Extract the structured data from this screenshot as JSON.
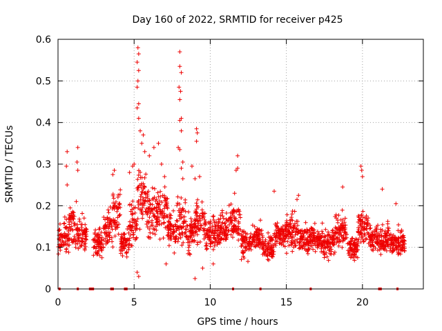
{
  "chart_data": {
    "type": "scatter",
    "title": "Day 160 of 2022, SRMTID for receiver p425",
    "xlabel": "GPS time / hours",
    "ylabel": "SRMTID / TECUs",
    "xlim": [
      0,
      24
    ],
    "ylim": [
      0,
      0.6
    ],
    "x_ticks": [
      0,
      5,
      10,
      15,
      20
    ],
    "y_ticks": [
      0,
      0.1,
      0.2,
      0.3,
      0.4,
      0.5,
      0.6
    ],
    "x_tick_labels": [
      "0",
      "5",
      "10",
      "15",
      "20"
    ],
    "y_tick_labels": [
      "0",
      "0.1",
      "0.2",
      "0.3",
      "0.4",
      "0.5",
      "0.6"
    ],
    "grid": true,
    "marker": "+",
    "series_color": "#ee0000",
    "series": [
      {
        "name": "SRMTID",
        "segments": [
          {
            "start": 0.0,
            "end": 0.3,
            "base": 0.12,
            "spread": 0.04
          },
          {
            "start": 0.3,
            "end": 0.7,
            "base": 0.13,
            "spread": 0.05
          },
          {
            "start": 0.7,
            "end": 1.2,
            "base": 0.15,
            "spread": 0.06
          },
          {
            "start": 1.2,
            "end": 1.9,
            "base": 0.13,
            "spread": 0.05
          },
          {
            "start": 2.3,
            "end": 3.0,
            "base": 0.11,
            "spread": 0.04
          },
          {
            "start": 3.0,
            "end": 3.6,
            "base": 0.15,
            "spread": 0.05
          },
          {
            "start": 3.6,
            "end": 4.1,
            "base": 0.18,
            "spread": 0.06
          },
          {
            "start": 4.1,
            "end": 4.7,
            "base": 0.11,
            "spread": 0.04
          },
          {
            "start": 4.7,
            "end": 5.2,
            "base": 0.16,
            "spread": 0.07
          },
          {
            "start": 5.2,
            "end": 5.8,
            "base": 0.22,
            "spread": 0.09
          },
          {
            "start": 5.8,
            "end": 6.5,
            "base": 0.18,
            "spread": 0.08
          },
          {
            "start": 6.5,
            "end": 7.2,
            "base": 0.19,
            "spread": 0.07
          },
          {
            "start": 7.2,
            "end": 7.8,
            "base": 0.14,
            "spread": 0.05
          },
          {
            "start": 7.8,
            "end": 8.4,
            "base": 0.17,
            "spread": 0.07
          },
          {
            "start": 8.4,
            "end": 9.0,
            "base": 0.13,
            "spread": 0.05
          },
          {
            "start": 9.0,
            "end": 9.7,
            "base": 0.16,
            "spread": 0.06
          },
          {
            "start": 9.7,
            "end": 10.5,
            "base": 0.13,
            "spread": 0.05
          },
          {
            "start": 10.5,
            "end": 11.3,
            "base": 0.15,
            "spread": 0.05
          },
          {
            "start": 11.3,
            "end": 12.0,
            "base": 0.16,
            "spread": 0.05
          },
          {
            "start": 12.0,
            "end": 12.7,
            "base": 0.11,
            "spread": 0.04
          },
          {
            "start": 12.7,
            "end": 13.4,
            "base": 0.12,
            "spread": 0.04
          },
          {
            "start": 13.4,
            "end": 14.2,
            "base": 0.1,
            "spread": 0.035
          },
          {
            "start": 14.2,
            "end": 15.0,
            "base": 0.13,
            "spread": 0.04
          },
          {
            "start": 15.0,
            "end": 15.8,
            "base": 0.14,
            "spread": 0.05
          },
          {
            "start": 15.8,
            "end": 16.6,
            "base": 0.12,
            "spread": 0.04
          },
          {
            "start": 16.6,
            "end": 17.4,
            "base": 0.12,
            "spread": 0.04
          },
          {
            "start": 17.4,
            "end": 18.2,
            "base": 0.11,
            "spread": 0.04
          },
          {
            "start": 18.2,
            "end": 19.0,
            "base": 0.14,
            "spread": 0.05
          },
          {
            "start": 19.0,
            "end": 19.7,
            "base": 0.1,
            "spread": 0.035
          },
          {
            "start": 19.7,
            "end": 20.4,
            "base": 0.15,
            "spread": 0.05
          },
          {
            "start": 20.4,
            "end": 21.0,
            "base": 0.12,
            "spread": 0.04
          },
          {
            "start": 21.0,
            "end": 21.8,
            "base": 0.12,
            "spread": 0.04
          },
          {
            "start": 21.8,
            "end": 22.8,
            "base": 0.11,
            "spread": 0.04
          }
        ],
        "spikes": [
          [
            0.6,
            0.33
          ],
          [
            0.55,
            0.295
          ],
          [
            0.6,
            0.25
          ],
          [
            1.3,
            0.34
          ],
          [
            1.25,
            0.305
          ],
          [
            1.3,
            0.285
          ],
          [
            1.2,
            0.21
          ],
          [
            3.7,
            0.285
          ],
          [
            3.6,
            0.275
          ],
          [
            4.9,
            0.295
          ],
          [
            4.7,
            0.28
          ],
          [
            5.0,
            0.3
          ],
          [
            5.25,
            0.58
          ],
          [
            5.3,
            0.565
          ],
          [
            5.2,
            0.545
          ],
          [
            5.3,
            0.525
          ],
          [
            5.25,
            0.5
          ],
          [
            5.2,
            0.485
          ],
          [
            5.3,
            0.445
          ],
          [
            5.2,
            0.435
          ],
          [
            5.3,
            0.41
          ],
          [
            5.4,
            0.38
          ],
          [
            5.5,
            0.35
          ],
          [
            5.6,
            0.37
          ],
          [
            5.7,
            0.33
          ],
          [
            6.0,
            0.32
          ],
          [
            6.3,
            0.34
          ],
          [
            6.6,
            0.35
          ],
          [
            6.8,
            0.3
          ],
          [
            7.0,
            0.27
          ],
          [
            8.0,
            0.57
          ],
          [
            8.0,
            0.535
          ],
          [
            8.1,
            0.52
          ],
          [
            7.95,
            0.485
          ],
          [
            8.05,
            0.475
          ],
          [
            8.0,
            0.455
          ],
          [
            8.1,
            0.41
          ],
          [
            8.0,
            0.405
          ],
          [
            8.1,
            0.38
          ],
          [
            7.9,
            0.34
          ],
          [
            8.0,
            0.335
          ],
          [
            8.2,
            0.305
          ],
          [
            8.1,
            0.29
          ],
          [
            8.2,
            0.265
          ],
          [
            8.8,
            0.295
          ],
          [
            9.1,
            0.385
          ],
          [
            9.15,
            0.375
          ],
          [
            9.1,
            0.355
          ],
          [
            9.3,
            0.27
          ],
          [
            9.0,
            0.265
          ],
          [
            9.0,
            0.025
          ],
          [
            11.8,
            0.32
          ],
          [
            11.7,
            0.285
          ],
          [
            11.8,
            0.29
          ],
          [
            11.6,
            0.23
          ],
          [
            14.2,
            0.235
          ],
          [
            15.7,
            0.215
          ],
          [
            15.8,
            0.225
          ],
          [
            18.7,
            0.245
          ],
          [
            19.9,
            0.295
          ],
          [
            19.95,
            0.285
          ],
          [
            20.0,
            0.27
          ],
          [
            21.3,
            0.24
          ],
          [
            22.2,
            0.205
          ],
          [
            5.2,
            0.04
          ],
          [
            5.3,
            0.03
          ],
          [
            7.1,
            0.06
          ],
          [
            9.5,
            0.05
          ],
          [
            10.2,
            0.06
          ]
        ]
      }
    ],
    "axis_markers_x": [
      0.1,
      1.3,
      2.1,
      2.2,
      2.3,
      3.5,
      3.6,
      4.4,
      4.5,
      11.5,
      13.3,
      16.6,
      21.1,
      21.2,
      22.3
    ]
  }
}
